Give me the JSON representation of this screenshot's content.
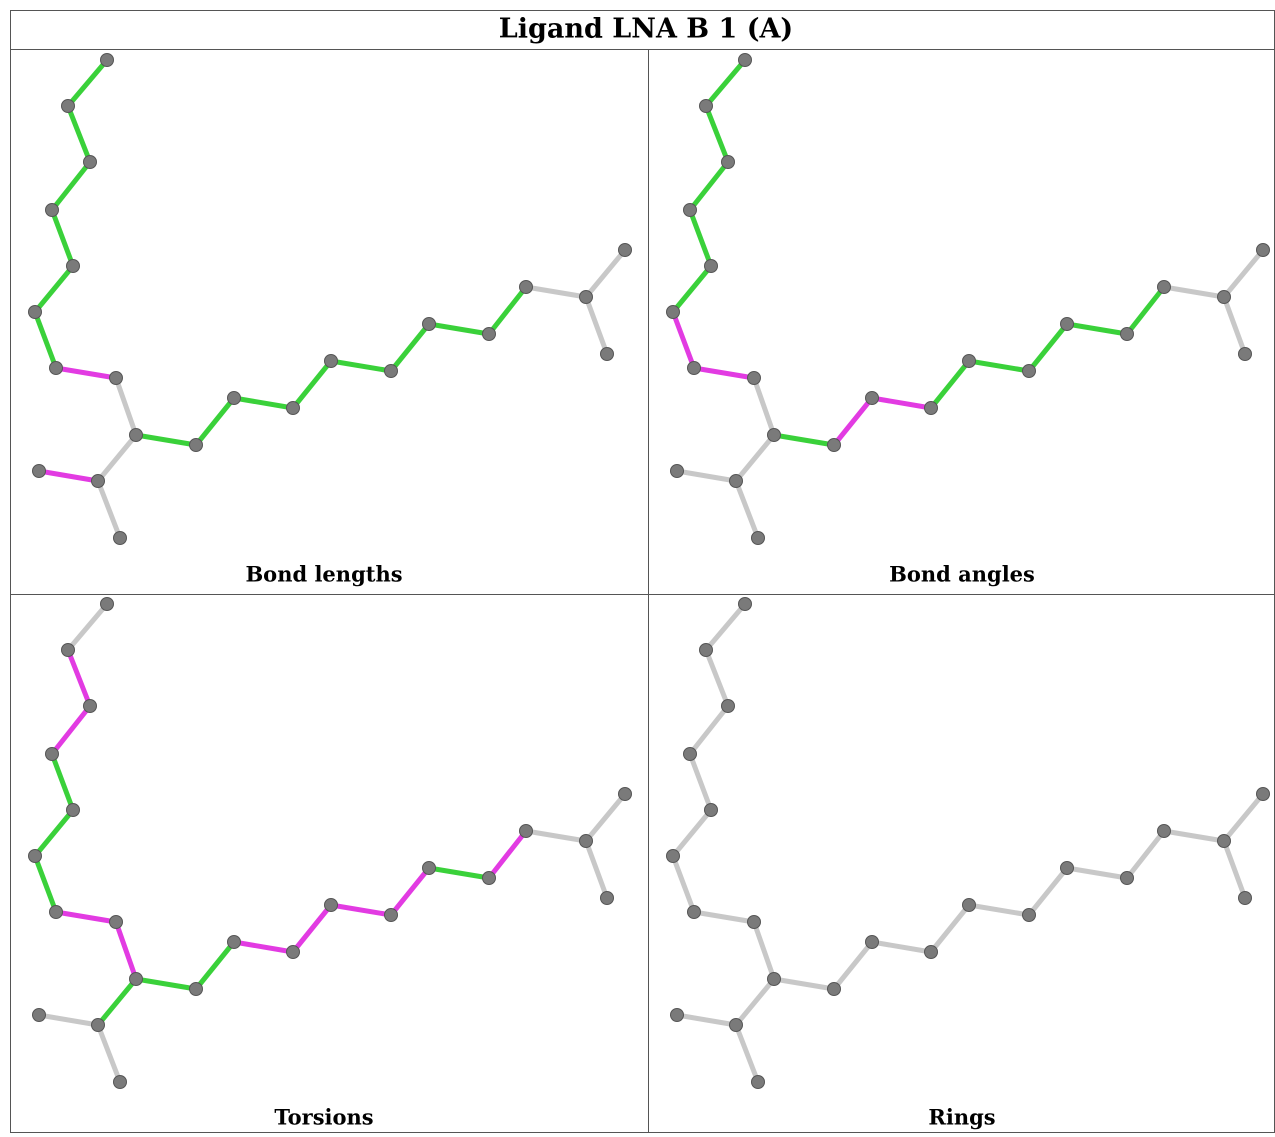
{
  "title": "Ligand LNA B 1 (A)",
  "panels": [
    {
      "caption": "Bond lengths"
    },
    {
      "caption": "Bond angles"
    },
    {
      "caption": "Torsions"
    },
    {
      "caption": "Rings"
    }
  ]
}
